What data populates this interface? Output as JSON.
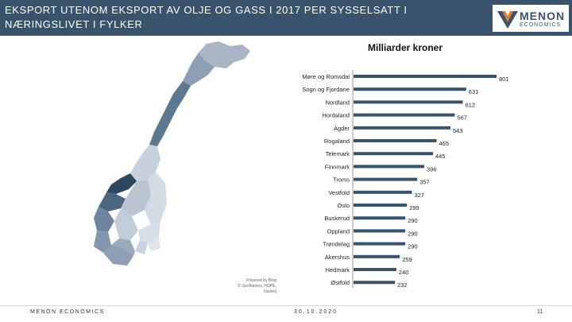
{
  "header": {
    "title": "EKSPORT UTENOM EKSPORT AV OLJE OG GASS I 2017 PER SYSSELSATT I NÆRINGSLIVET I FYLKER",
    "logo_name": "MENON",
    "logo_sub": "ECONOMICS",
    "color": "#3a536c"
  },
  "chart_data": {
    "type": "bar",
    "orientation": "horizontal",
    "title": "Milliarder kroner",
    "categories": [
      "Møre og Romsdal",
      "Sogn og Fjordane",
      "Nordland",
      "Hordaland",
      "Agder",
      "Rogaland",
      "Telemark",
      "Finnmark",
      "Troms",
      "Vestfold",
      "Oslo",
      "Buskerud",
      "Oppland",
      "Trøndelag",
      "Akershus",
      "Hedmark",
      "Østfold"
    ],
    "values": [
      801,
      631,
      612,
      567,
      543,
      465,
      445,
      396,
      357,
      327,
      299,
      290,
      290,
      290,
      259,
      240,
      232
    ],
    "bar_color": "#3a536c",
    "grid": false,
    "legend": "none"
  },
  "map": {
    "powered_line1": "Powered by Bing",
    "powered_line2": "© GeoNames, HOPE, Navteq"
  },
  "footer": {
    "left": "MENON ECONOMICS",
    "date": "30.10.2020",
    "page": "11"
  }
}
